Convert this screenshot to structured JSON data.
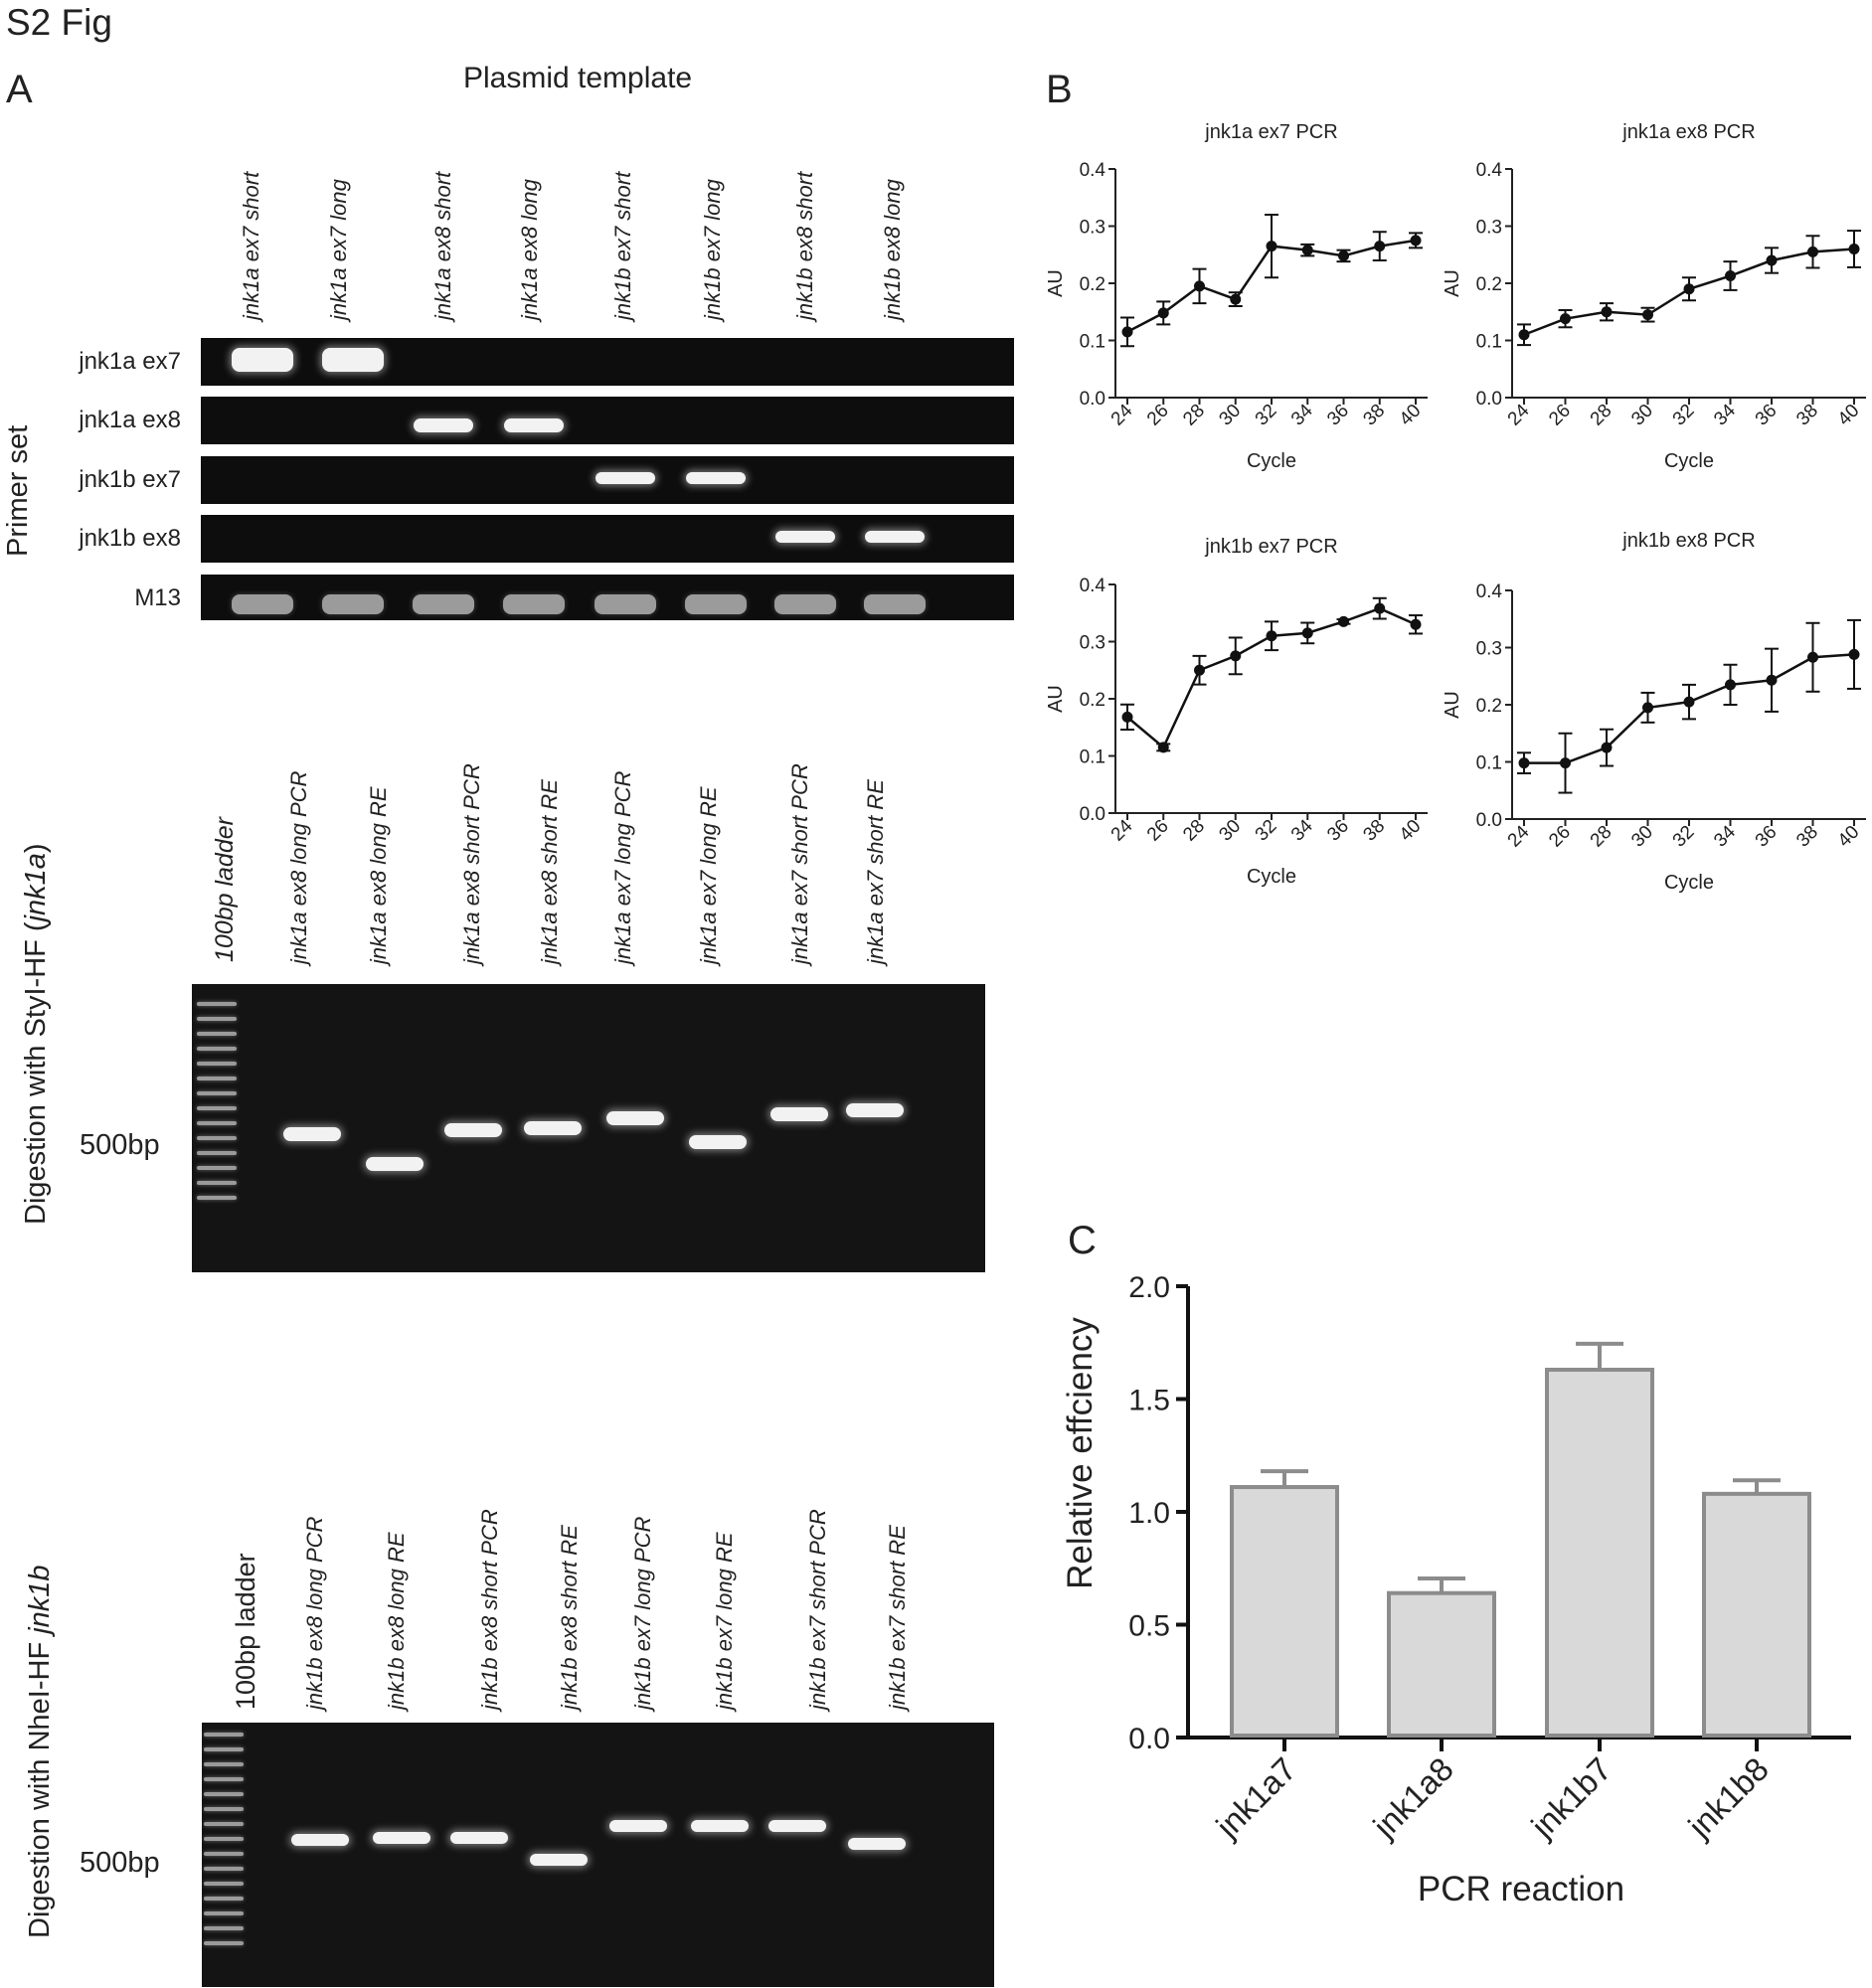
{
  "figure": {
    "title": "S2 Fig",
    "panels": {
      "a": "A",
      "b": "B",
      "c": "C"
    }
  },
  "panel_a": {
    "top": {
      "header": "Plasmid template",
      "side_label": "Primer set",
      "lanes": [
        "jnk1a ex7 short",
        "jnk1a ex7 long",
        "jnk1a ex8 short",
        "jnk1a ex8 long",
        "jnk1b ex7 short",
        "jnk1b ex7 long",
        "jnk1b ex8 short",
        "jnk1b ex8 long"
      ],
      "primer_sets": [
        "jnk1a ex7",
        "jnk1a ex8",
        "jnk1b ex7",
        "jnk1b ex8",
        "M13"
      ]
    },
    "middle": {
      "side_label_prefix": "Digestion with StyI-HF (",
      "side_label_italic": "jnk1a",
      "side_label_suffix": ")",
      "ladder_label": "100bp ladder",
      "lanes": [
        "jnk1a ex8 long PCR",
        "jnk1a ex8 long RE",
        "jnk1a ex8 short PCR",
        "jnk1a ex8 short RE",
        "jnk1a ex7 long PCR",
        "jnk1a ex7 long RE",
        "jnk1a ex7 short PCR",
        "jnk1a ex7 short RE"
      ],
      "marker_label": "500bp"
    },
    "bottom": {
      "side_label_prefix": "Digestion with NheI-HF ",
      "side_label_italic": "jnk1b",
      "ladder_label": "100bp ladder",
      "lanes": [
        "jnk1b ex8 long PCR",
        "jnk1b ex8 long RE",
        "jnk1b ex8 short PCR",
        "jnk1b ex8 short RE",
        "jnk1b ex7 long PCR",
        "jnk1b ex7 long RE",
        "jnk1b ex7 short PCR",
        "jnk1b ex7 short RE"
      ],
      "marker_label": "500bp"
    }
  },
  "chart_data": [
    {
      "type": "line",
      "title": "jnk1a ex7 PCR",
      "xlabel": "Cycle",
      "ylabel": "AU",
      "x": [
        24,
        26,
        28,
        30,
        32,
        34,
        36,
        38,
        40
      ],
      "values": [
        0.115,
        0.148,
        0.195,
        0.172,
        0.265,
        0.258,
        0.248,
        0.265,
        0.275
      ],
      "error": [
        0.025,
        0.02,
        0.03,
        0.012,
        0.055,
        0.01,
        0.01,
        0.025,
        0.013
      ],
      "ylim": [
        0,
        0.4
      ],
      "yticks": [
        "0.0",
        "0.1",
        "0.2",
        "0.3",
        "0.4"
      ],
      "xticks": [
        "24",
        "26",
        "28",
        "30",
        "32",
        "34",
        "36",
        "38",
        "40"
      ]
    },
    {
      "type": "line",
      "title": "jnk1a ex8 PCR",
      "xlabel": "Cycle",
      "ylabel": "AU",
      "x": [
        24,
        26,
        28,
        30,
        32,
        34,
        36,
        38,
        40
      ],
      "values": [
        0.11,
        0.138,
        0.15,
        0.145,
        0.19,
        0.213,
        0.24,
        0.255,
        0.26
      ],
      "error": [
        0.018,
        0.015,
        0.015,
        0.012,
        0.02,
        0.025,
        0.022,
        0.028,
        0.032
      ],
      "ylim": [
        0,
        0.4
      ],
      "yticks": [
        "0.0",
        "0.1",
        "0.2",
        "0.3",
        "0.4"
      ],
      "xticks": [
        "24",
        "26",
        "28",
        "30",
        "32",
        "34",
        "36",
        "38",
        "40"
      ]
    },
    {
      "type": "line",
      "title": "jnk1b ex7 PCR",
      "xlabel": "Cycle",
      "ylabel": "AU",
      "x": [
        24,
        26,
        28,
        30,
        32,
        34,
        36,
        38,
        40
      ],
      "values": [
        0.168,
        0.115,
        0.25,
        0.275,
        0.31,
        0.315,
        0.335,
        0.358,
        0.33
      ],
      "error": [
        0.022,
        0.006,
        0.025,
        0.032,
        0.025,
        0.018,
        0.004,
        0.018,
        0.016
      ],
      "ylim": [
        0,
        0.4
      ],
      "yticks": [
        "0.0",
        "0.1",
        "0.2",
        "0.3",
        "0.4"
      ],
      "xticks": [
        "24",
        "26",
        "28",
        "30",
        "32",
        "34",
        "36",
        "38",
        "40"
      ]
    },
    {
      "type": "line",
      "title": "jnk1b ex8 PCR",
      "xlabel": "Cycle",
      "ylabel": "AU",
      "x": [
        24,
        26,
        28,
        30,
        32,
        34,
        36,
        38,
        40
      ],
      "values": [
        0.098,
        0.098,
        0.125,
        0.195,
        0.205,
        0.235,
        0.243,
        0.283,
        0.288
      ],
      "error": [
        0.018,
        0.052,
        0.032,
        0.026,
        0.03,
        0.035,
        0.055,
        0.06,
        0.06
      ],
      "ylim": [
        0,
        0.4
      ],
      "yticks": [
        "0.0",
        "0.1",
        "0.2",
        "0.3",
        "0.4"
      ],
      "xticks": [
        "24",
        "26",
        "28",
        "30",
        "32",
        "34",
        "36",
        "38",
        "40"
      ]
    },
    {
      "type": "bar",
      "xlabel": "PCR reaction",
      "ylabel": "Relative effciency",
      "categories": [
        "jnk1a7",
        "jnk1a8",
        "jnk1b7",
        "jnk1b8"
      ],
      "values": [
        1.11,
        0.64,
        1.63,
        1.08
      ],
      "error": [
        0.07,
        0.065,
        0.115,
        0.06
      ],
      "ylim": [
        0,
        2.0
      ],
      "yticks": [
        "0.0",
        "0.5",
        "1.0",
        "1.5",
        "2.0"
      ],
      "bar_fill": "#d9d9d9",
      "bar_stroke": "#8c8c8c"
    }
  ]
}
